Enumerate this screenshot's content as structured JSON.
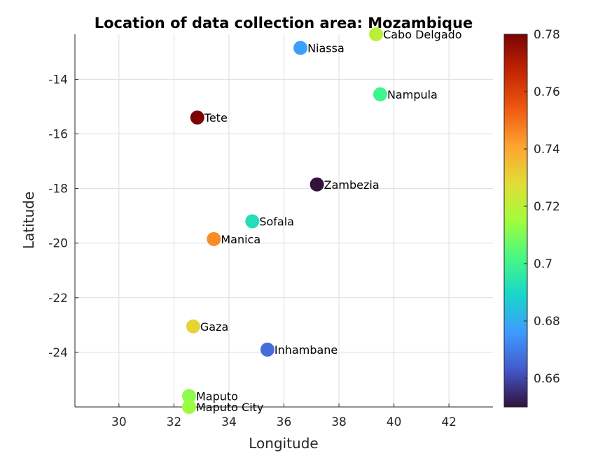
{
  "chart_data": {
    "type": "scatter",
    "title": "Location of data collection area: Mozambique",
    "xlabel": "Longitude",
    "ylabel": "Latitude",
    "xlim": [
      28.4,
      43.6
    ],
    "ylim": [
      -26.0,
      -12.35
    ],
    "xticks": [
      30,
      32,
      34,
      36,
      38,
      40,
      42
    ],
    "yticks": [
      -24,
      -22,
      -20,
      -18,
      -16,
      -14
    ],
    "grid": true,
    "colorbar": {
      "colormap": "turbo",
      "range": [
        0.65,
        0.78
      ],
      "ticks": [
        "0.66",
        "0.68",
        "0.7",
        "0.72",
        "0.74",
        "0.76",
        "0.78"
      ]
    },
    "points": [
      {
        "name": "Cabo Delgado",
        "x": 39.35,
        "y": -12.35,
        "value": 0.72
      },
      {
        "name": "Niassa",
        "x": 36.6,
        "y": -12.85,
        "value": 0.677
      },
      {
        "name": "Nampula",
        "x": 39.5,
        "y": -14.55,
        "value": 0.7
      },
      {
        "name": "Tete",
        "x": 32.85,
        "y": -15.4,
        "value": 0.78
      },
      {
        "name": "Zambezia",
        "x": 37.2,
        "y": -17.85,
        "value": 0.65
      },
      {
        "name": "Sofala",
        "x": 34.85,
        "y": -19.2,
        "value": 0.692
      },
      {
        "name": "Manica",
        "x": 33.45,
        "y": -19.85,
        "value": 0.745
      },
      {
        "name": "Gaza",
        "x": 32.7,
        "y": -23.05,
        "value": 0.73
      },
      {
        "name": "Inhambane",
        "x": 35.4,
        "y": -23.9,
        "value": 0.667
      },
      {
        "name": "Maputo",
        "x": 32.55,
        "y": -25.6,
        "value": 0.712
      },
      {
        "name": "Maputo City",
        "x": 32.55,
        "y": -26.0,
        "value": 0.714
      }
    ]
  }
}
